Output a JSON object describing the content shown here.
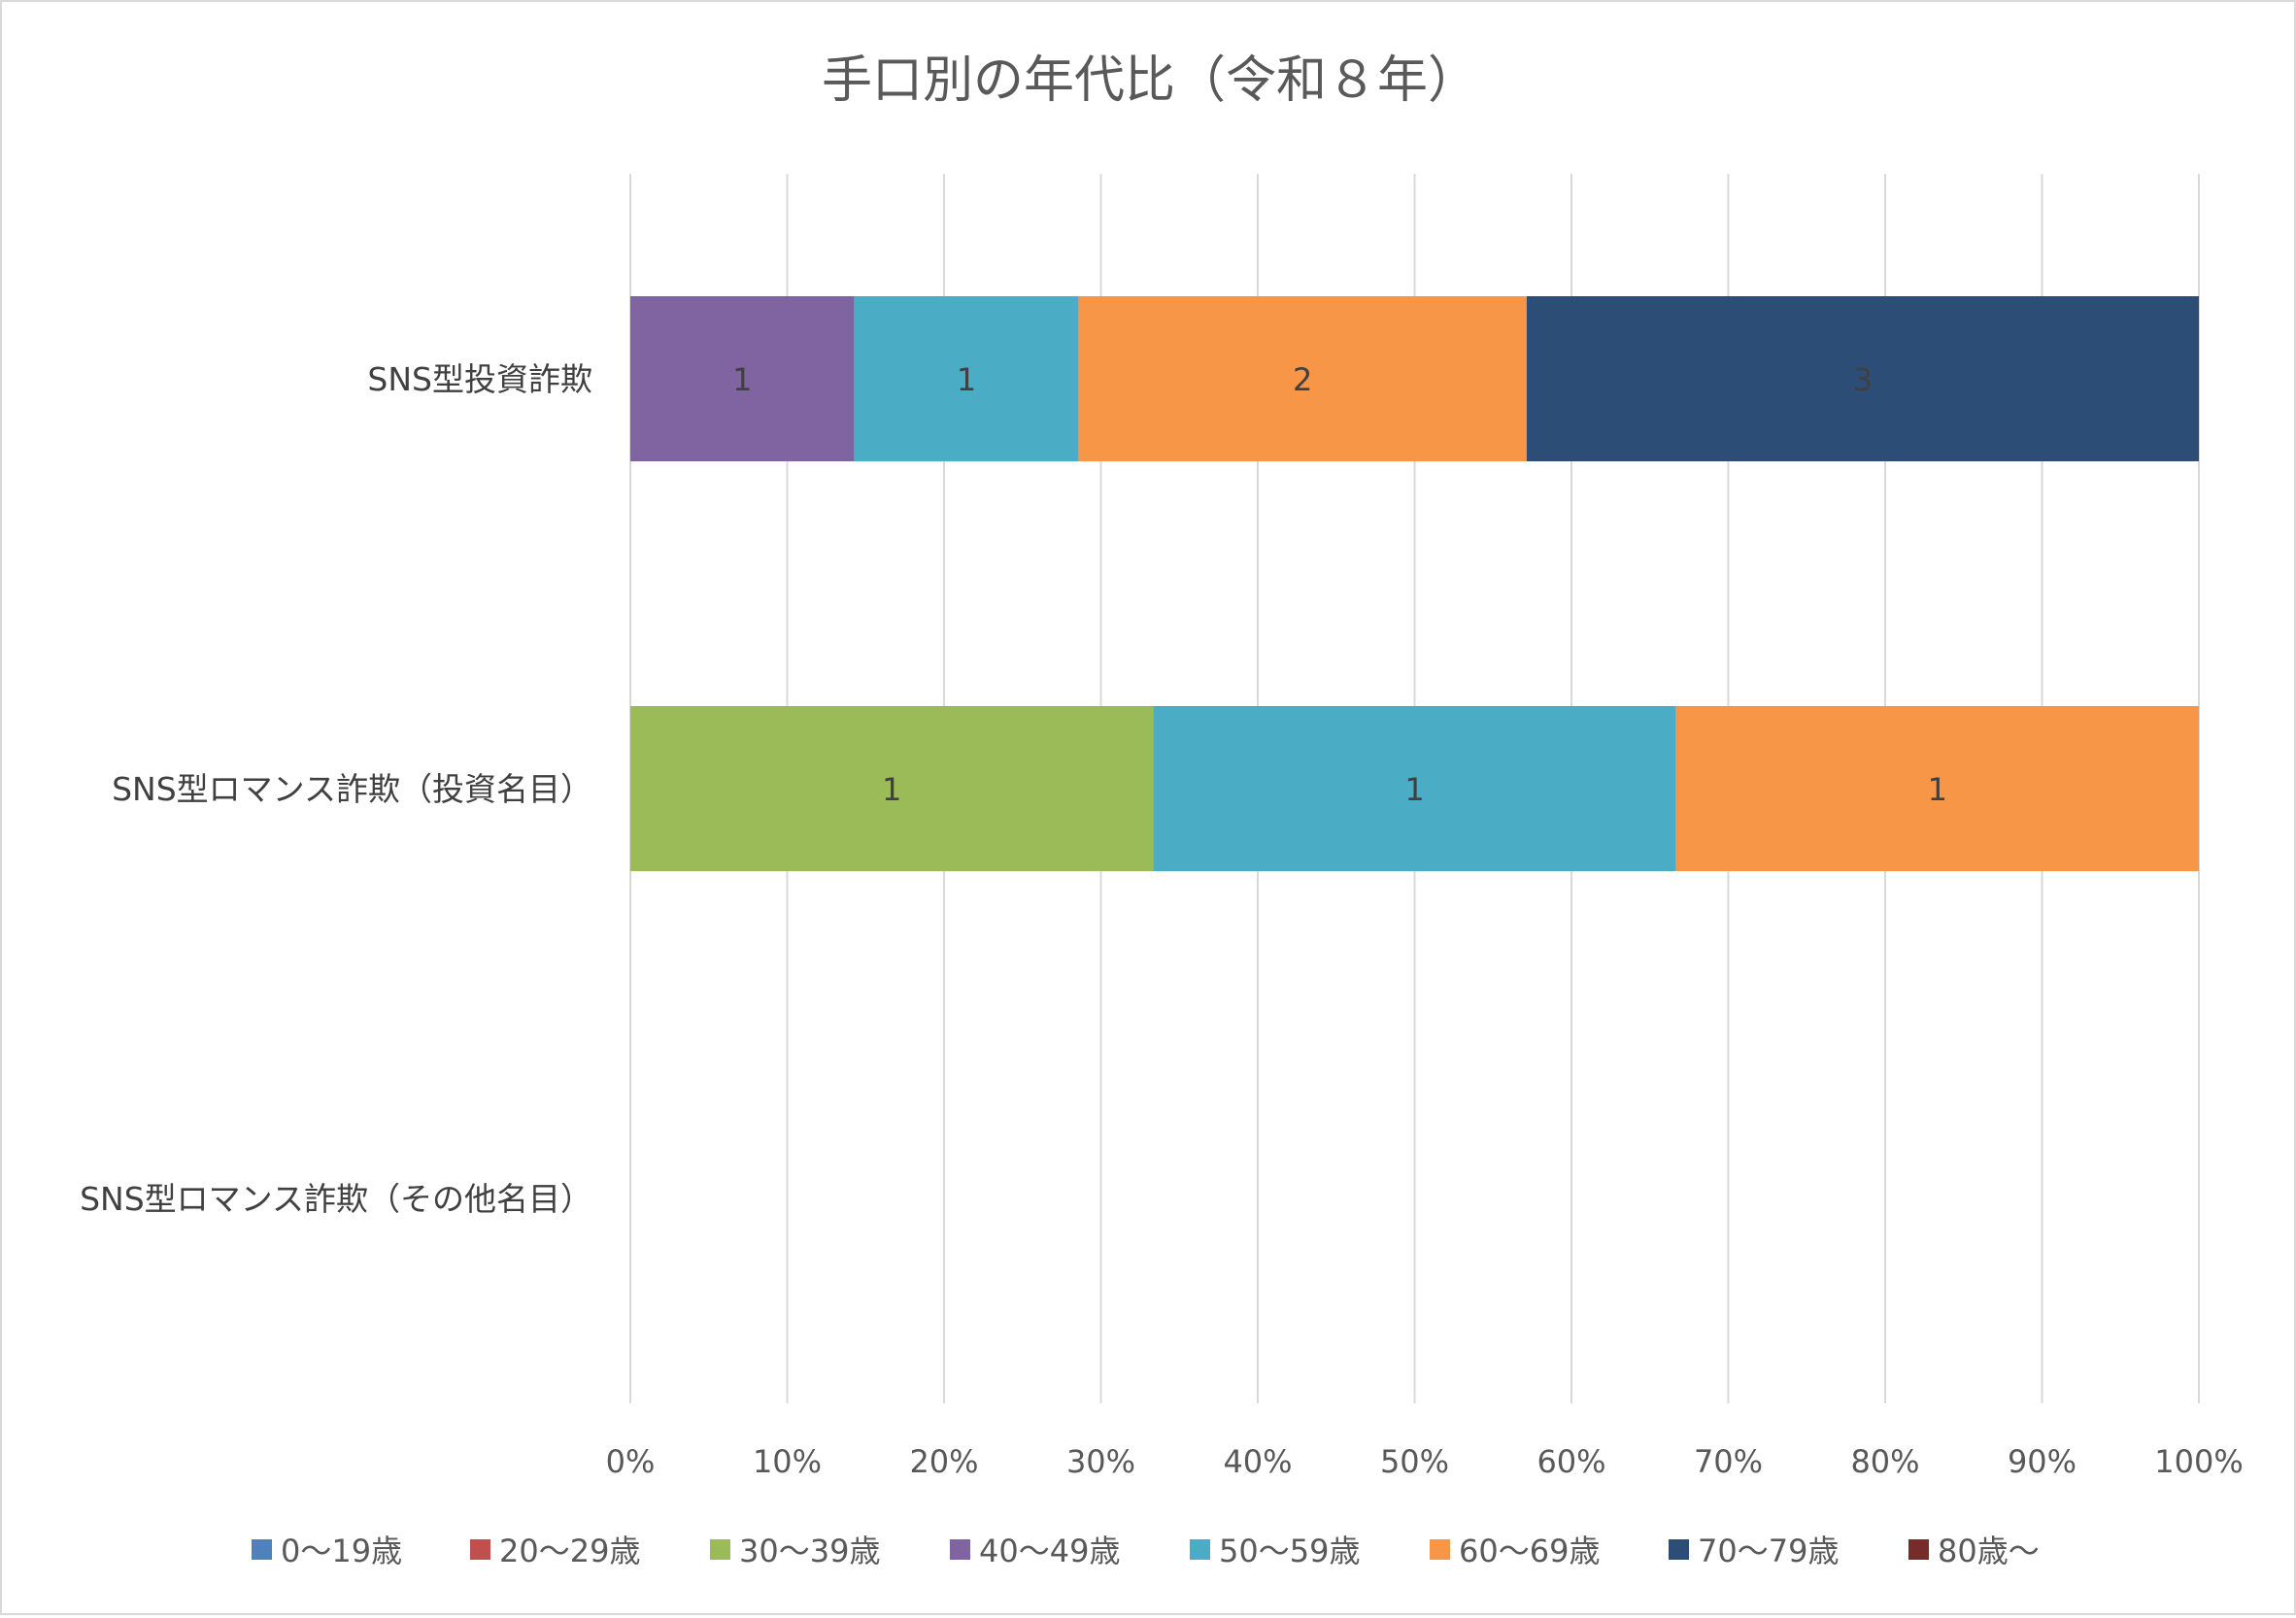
{
  "chart_data": {
    "type": "bar",
    "orientation": "horizontal",
    "stacked": "percent",
    "title": "手口別の年代比（令和８年）",
    "categories": [
      "SNS型投資詐欺",
      "SNS型ロマンス詐欺（投資名目）",
      "SNS型ロマンス詐欺（その他名目）"
    ],
    "x_ticks": [
      "0%",
      "10%",
      "20%",
      "30%",
      "40%",
      "50%",
      "60%",
      "70%",
      "80%",
      "90%",
      "100%"
    ],
    "xlim": [
      0,
      100
    ],
    "grid": true,
    "legend_position": "bottom",
    "series": [
      {
        "name": "0～19歳",
        "color": "#4f81bd",
        "values": [
          0,
          0,
          0
        ]
      },
      {
        "name": "20～29歳",
        "color": "#c0504d",
        "values": [
          0,
          0,
          0
        ]
      },
      {
        "name": "30～39歳",
        "color": "#9bbb59",
        "values": [
          0,
          1,
          0
        ]
      },
      {
        "name": "40～49歳",
        "color": "#8064a2",
        "values": [
          1,
          0,
          0
        ]
      },
      {
        "name": "50～59歳",
        "color": "#4bacc6",
        "values": [
          1,
          1,
          0
        ]
      },
      {
        "name": "60～69歳",
        "color": "#f79646",
        "values": [
          2,
          1,
          0
        ]
      },
      {
        "name": "70～79歳",
        "color": "#2c4d75",
        "values": [
          3,
          0,
          0
        ]
      },
      {
        "name": "80歳～",
        "color": "#772c2a",
        "values": [
          0,
          0,
          0
        ]
      }
    ]
  }
}
